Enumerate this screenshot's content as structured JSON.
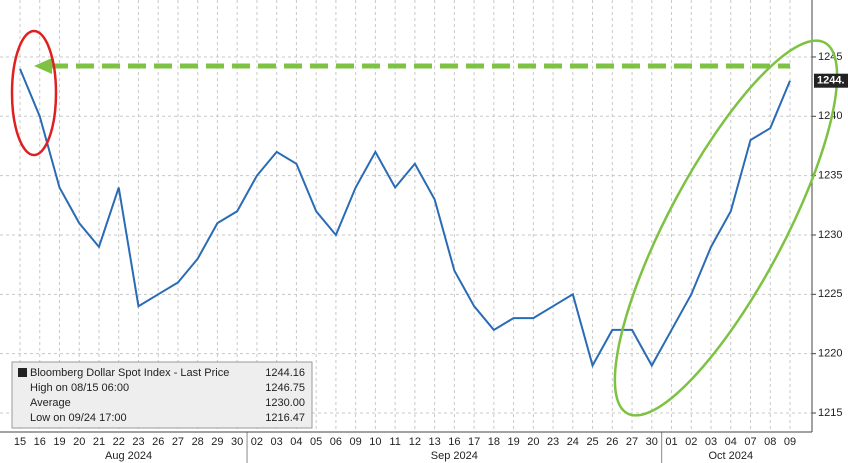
{
  "chart_data": {
    "type": "line",
    "category_groups": [
      {
        "label": "Aug 2024",
        "categories": [
          "15",
          "16",
          "19",
          "20",
          "21",
          "22",
          "23",
          "26",
          "27",
          "28",
          "29",
          "30"
        ]
      },
      {
        "label": "Sep 2024",
        "categories": [
          "02",
          "03",
          "04",
          "05",
          "06",
          "09",
          "10",
          "11",
          "12",
          "13",
          "16",
          "17",
          "18",
          "19",
          "20",
          "23",
          "24",
          "25",
          "26",
          "27",
          "30"
        ]
      },
      {
        "label": "Oct 2024",
        "categories": [
          "01",
          "02",
          "03",
          "04",
          "07",
          "08",
          "09"
        ]
      }
    ],
    "series": [
      {
        "name": "Bloomberg Dollar Spot Index - Last Price",
        "color": "#2a6bb5",
        "values": [
          1244,
          1240,
          1234,
          1231,
          1229,
          1234,
          1224,
          1225,
          1226,
          1228,
          1231,
          1232,
          1235,
          1237,
          1236,
          1232,
          1230,
          1234,
          1237,
          1234,
          1236,
          1233,
          1227,
          1224,
          1222,
          1223,
          1223,
          1224,
          1225,
          1219,
          1222,
          1222,
          1219,
          1222,
          1225,
          1229,
          1232,
          1238,
          1239,
          1243
        ]
      }
    ],
    "ylim": [
      1213.4,
      1249.8
    ],
    "yticks": [
      1215,
      1220,
      1225,
      1230,
      1235,
      1240,
      1245
    ],
    "grid": true,
    "last_price_tag": "1244.",
    "legend": [
      {
        "label": "Bloomberg Dollar Spot Index - Last Price",
        "value": "1244.16"
      },
      {
        "label": "High on 08/15 06:00",
        "value": "1246.75"
      },
      {
        "label": "Average",
        "value": "1230.00"
      },
      {
        "label": "Low on 09/24 17:00",
        "value": "1216.47"
      }
    ]
  }
}
